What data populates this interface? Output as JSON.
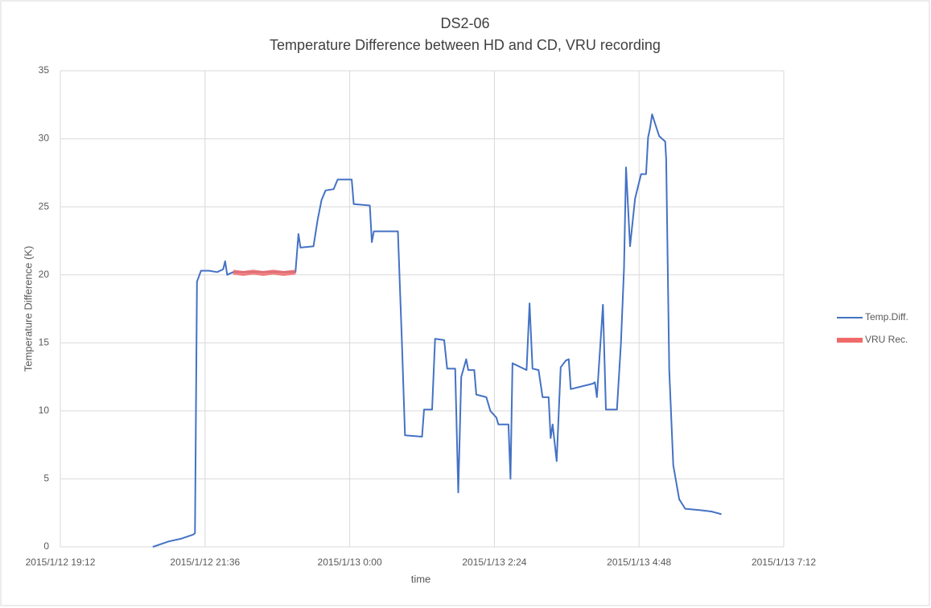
{
  "chart_data": {
    "type": "line",
    "title": "DS2-06",
    "subtitle": "Temperature Difference between HD and CD, VRU recording",
    "xlabel": "time",
    "ylabel": "Temperature Difference (K)",
    "xlim": [
      "2015/1/12 19:12",
      "2015/1/13 7:12"
    ],
    "xticks": [
      "2015/1/12 19:12",
      "2015/1/12 21:36",
      "2015/1/13 0:00",
      "2015/1/13 2:24",
      "2015/1/13 4:48",
      "2015/1/13 7:12"
    ],
    "ylim": [
      0,
      35
    ],
    "yticks": [
      0,
      5,
      10,
      15,
      20,
      25,
      30,
      35
    ],
    "grid": true,
    "legend": "right",
    "series": [
      {
        "name": "Temp.Diff.",
        "color": "#4472c4",
        "x": [
          "2015/1/12 20:44",
          "2015/1/12 20:52",
          "2015/1/12 21:00",
          "2015/1/12 21:12",
          "2015/1/12 21:24",
          "2015/1/12 21:26",
          "2015/1/12 21:28",
          "2015/1/12 21:32",
          "2015/1/12 21:40",
          "2015/1/12 21:48",
          "2015/1/12 21:54",
          "2015/1/12 21:56",
          "2015/1/12 21:58",
          "2015/1/12 22:04",
          "2015/1/12 23:06",
          "2015/1/12 23:09",
          "2015/1/12 23:11",
          "2015/1/12 23:24",
          "2015/1/12 23:28",
          "2015/1/12 23:32",
          "2015/1/12 23:36",
          "2015/1/12 23:44",
          "2015/1/12 23:48",
          "2015/1/13 0:02",
          "2015/1/13 0:04",
          "2015/1/13 0:20",
          "2015/1/13 0:22",
          "2015/1/13 0:24",
          "2015/1/13 0:48",
          "2015/1/13 0:52",
          "2015/1/13 0:55",
          "2015/1/13 1:12",
          "2015/1/13 1:14",
          "2015/1/13 1:22",
          "2015/1/13 1:25",
          "2015/1/13 1:34",
          "2015/1/13 1:37",
          "2015/1/13 1:45",
          "2015/1/13 1:48",
          "2015/1/13 1:51",
          "2015/1/13 1:56",
          "2015/1/13 1:58",
          "2015/1/13 2:04",
          "2015/1/13 2:06",
          "2015/1/13 2:16",
          "2015/1/13 2:20",
          "2015/1/13 2:26",
          "2015/1/13 2:28",
          "2015/1/13 2:38",
          "2015/1/13 2:40",
          "2015/1/13 2:42",
          "2015/1/13 2:56",
          "2015/1/13 2:59",
          "2015/1/13 3:02",
          "2015/1/13 3:08",
          "2015/1/13 3:12",
          "2015/1/13 3:18",
          "2015/1/13 3:20",
          "2015/1/13 3:22",
          "2015/1/13 3:26",
          "2015/1/13 3:30",
          "2015/1/13 3:35",
          "2015/1/13 3:38",
          "2015/1/13 3:40",
          "2015/1/13 4:02",
          "2015/1/13 4:04",
          "2015/1/13 4:06",
          "2015/1/13 4:12",
          "2015/1/13 4:15",
          "2015/1/13 4:26",
          "2015/1/13 4:30",
          "2015/1/13 4:33",
          "2015/1/13 4:35",
          "2015/1/13 4:39",
          "2015/1/13 4:44",
          "2015/1/13 4:50",
          "2015/1/13 4:55",
          "2015/1/13 4:57",
          "2015/1/13 4:59",
          "2015/1/13 5:01",
          "2015/1/13 5:04",
          "2015/1/13 5:08",
          "2015/1/13 5:14",
          "2015/1/13 5:15",
          "2015/1/13 5:18",
          "2015/1/13 5:22",
          "2015/1/13 5:28",
          "2015/1/13 5:34",
          "2015/1/13 5:48",
          "2015/1/13 6:00",
          "2015/1/13 6:10"
        ],
        "values": [
          0,
          0.2,
          0.4,
          0.6,
          0.9,
          1.0,
          19.5,
          20.3,
          20.3,
          20.2,
          20.4,
          21.0,
          20.0,
          20.2,
          20.2,
          23.0,
          22.0,
          22.1,
          24.0,
          25.5,
          26.2,
          26.3,
          27.0,
          27.0,
          25.2,
          25.1,
          22.4,
          23.2,
          23.2,
          15,
          8.2,
          8.1,
          10.1,
          10.1,
          15.3,
          15.2,
          13.1,
          13.1,
          4.0,
          12.5,
          13.8,
          13.0,
          13.0,
          11.2,
          11.0,
          10.0,
          9.5,
          9.0,
          9.0,
          5.0,
          13.5,
          13.0,
          17.9,
          13.1,
          13.0,
          11.0,
          11.0,
          8.0,
          9.0,
          6.3,
          13.2,
          13.7,
          13.8,
          11.6,
          12.0,
          12.1,
          11.0,
          17.8,
          10.1,
          10.1,
          15,
          20.5,
          27.9,
          22.1,
          25.6,
          27.4,
          27.4,
          30.1,
          30.8,
          31.8,
          31.1,
          30.2,
          29.8,
          28.5,
          13,
          6.0,
          3.5,
          2.8,
          2.7,
          2.6,
          2.4
        ]
      },
      {
        "name": "VRU Rec.",
        "color": "#f06a6a",
        "x": [
          "2015/1/12 22:04",
          "2015/1/12 22:14",
          "2015/1/12 22:24",
          "2015/1/12 22:34",
          "2015/1/12 22:44",
          "2015/1/12 22:54",
          "2015/1/12 23:06"
        ],
        "values": [
          20.2,
          20.1,
          20.2,
          20.1,
          20.2,
          20.1,
          20.2
        ]
      }
    ]
  }
}
